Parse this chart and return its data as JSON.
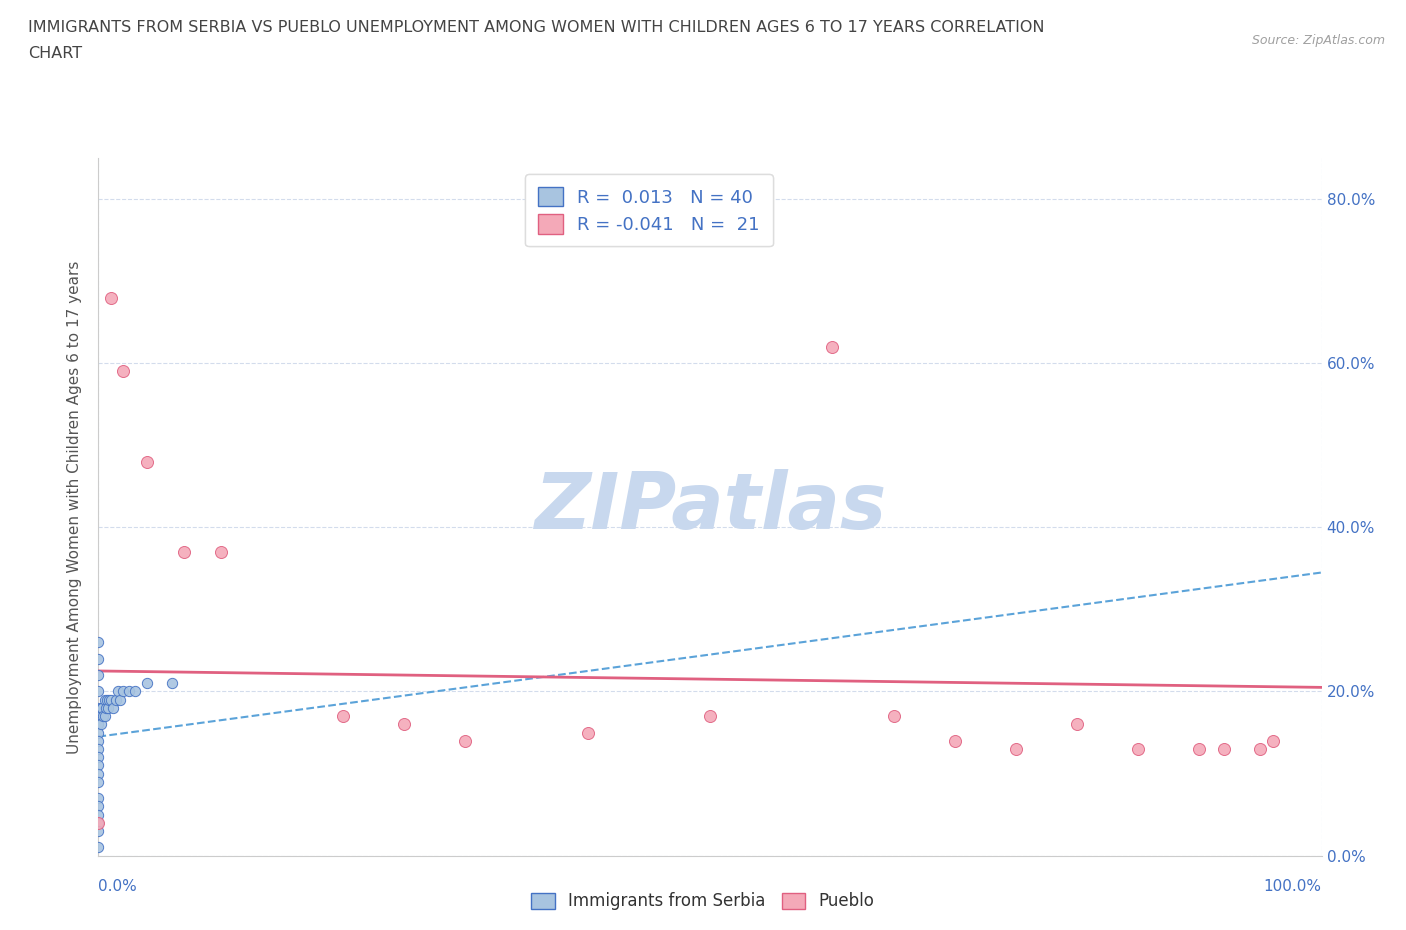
{
  "title_line1": "IMMIGRANTS FROM SERBIA VS PUEBLO UNEMPLOYMENT AMONG WOMEN WITH CHILDREN AGES 6 TO 17 YEARS CORRELATION",
  "title_line2": "CHART",
  "source": "Source: ZipAtlas.com",
  "ylabel": "Unemployment Among Women with Children Ages 6 to 17 years",
  "xlim": [
    0.0,
    1.0
  ],
  "ylim": [
    0.0,
    0.85
  ],
  "xtick_labels": [
    "0.0%",
    "100.0%"
  ],
  "ytick_labels": [
    "0.0%",
    "20.0%",
    "40.0%",
    "60.0%",
    "80.0%"
  ],
  "ytick_values": [
    0.0,
    0.2,
    0.4,
    0.6,
    0.8
  ],
  "serbia_color": "#a8c4e0",
  "serbia_edge_color": "#4472c4",
  "pueblo_color": "#f4a9b8",
  "pueblo_edge_color": "#e06080",
  "trendline_serbia_color": "#5ba3d9",
  "trendline_pueblo_color": "#e06080",
  "watermark_color": "#c8d8ee",
  "legend_serbia_label": "R =  0.013   N = 40",
  "legend_pueblo_label": "R = -0.041   N =  21",
  "bottom_legend_serbia": "Immigrants from Serbia",
  "bottom_legend_pueblo": "Pueblo",
  "serbia_x": [
    0.0,
    0.0,
    0.0,
    0.0,
    0.0,
    0.0,
    0.0,
    0.0,
    0.0,
    0.0,
    0.0,
    0.0,
    0.0,
    0.0,
    0.0,
    0.0,
    0.0,
    0.0,
    0.0,
    0.0,
    0.002,
    0.002,
    0.003,
    0.004,
    0.005,
    0.005,
    0.006,
    0.007,
    0.008,
    0.009,
    0.01,
    0.012,
    0.014,
    0.016,
    0.018,
    0.02,
    0.025,
    0.03,
    0.04,
    0.06
  ],
  "serbia_y": [
    0.26,
    0.24,
    0.22,
    0.2,
    0.18,
    0.17,
    0.16,
    0.15,
    0.14,
    0.13,
    0.12,
    0.11,
    0.1,
    0.09,
    0.07,
    0.06,
    0.05,
    0.04,
    0.03,
    0.01,
    0.18,
    0.16,
    0.18,
    0.17,
    0.19,
    0.17,
    0.18,
    0.19,
    0.18,
    0.19,
    0.19,
    0.18,
    0.19,
    0.2,
    0.19,
    0.2,
    0.2,
    0.2,
    0.21,
    0.21
  ],
  "pueblo_x": [
    0.0,
    0.01,
    0.02,
    0.04,
    0.07,
    0.1,
    0.2,
    0.25,
    0.3,
    0.4,
    0.5,
    0.6,
    0.65,
    0.7,
    0.75,
    0.8,
    0.85,
    0.9,
    0.92,
    0.95,
    0.96
  ],
  "pueblo_y": [
    0.04,
    0.68,
    0.59,
    0.48,
    0.37,
    0.37,
    0.17,
    0.16,
    0.14,
    0.15,
    0.17,
    0.62,
    0.17,
    0.14,
    0.13,
    0.16,
    0.13,
    0.13,
    0.13,
    0.13,
    0.14
  ],
  "serbia_trendline_x": [
    0.0,
    1.0
  ],
  "serbia_trendline_y": [
    0.145,
    0.345
  ],
  "pueblo_trendline_x": [
    0.0,
    1.0
  ],
  "pueblo_trendline_y": [
    0.225,
    0.205
  ]
}
